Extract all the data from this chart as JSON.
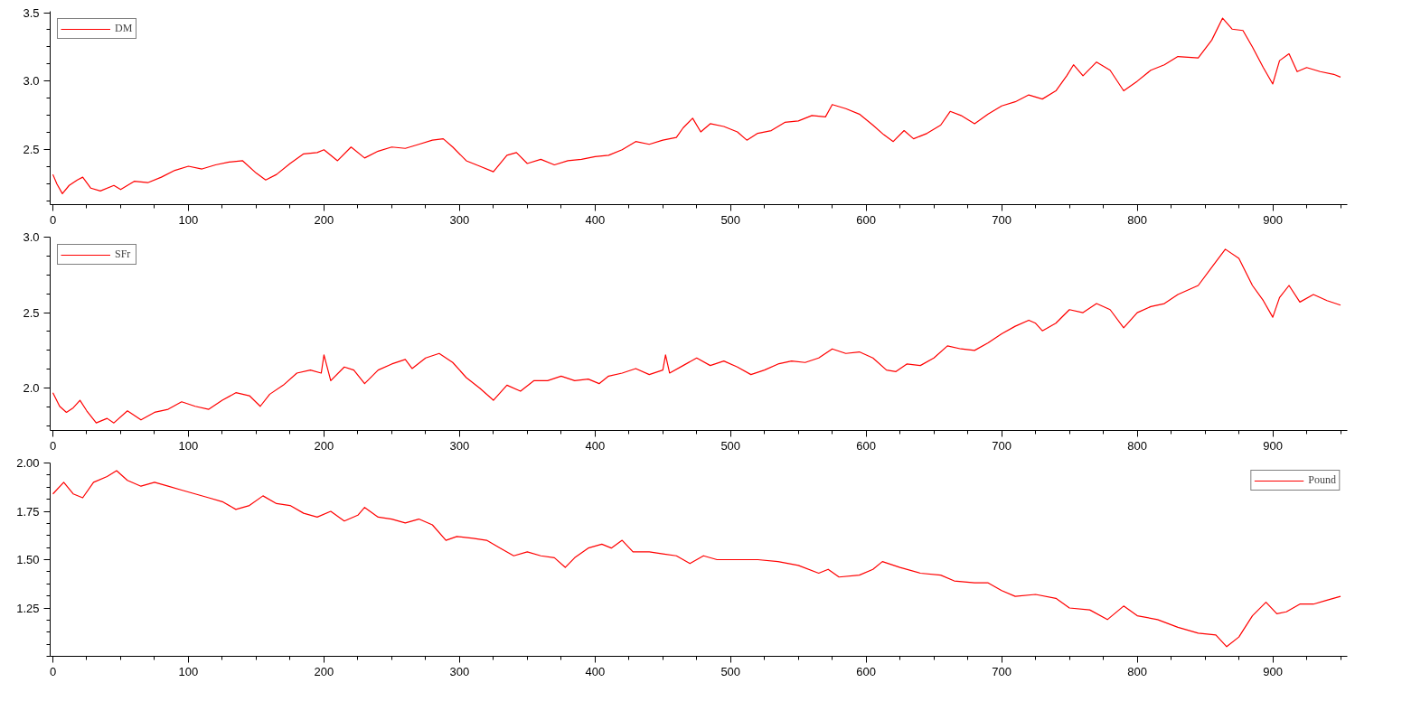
{
  "chart_data": [
    {
      "type": "line",
      "legend": "top left",
      "grid": false,
      "marker": "none",
      "line_style": "solid",
      "x": [
        0,
        3,
        7,
        12,
        18,
        22,
        28,
        35,
        45,
        50,
        60,
        70,
        80,
        90,
        100,
        110,
        120,
        130,
        140,
        150,
        157,
        165,
        175,
        185,
        195,
        200,
        210,
        220,
        230,
        240,
        250,
        260,
        270,
        280,
        288,
        295,
        305,
        315,
        325,
        335,
        342,
        350,
        360,
        370,
        380,
        390,
        400,
        410,
        420,
        430,
        440,
        450,
        460,
        465,
        472,
        478,
        485,
        495,
        505,
        512,
        520,
        530,
        540,
        550,
        560,
        570,
        575,
        585,
        595,
        605,
        613,
        620,
        628,
        635,
        645,
        655,
        662,
        670,
        680,
        690,
        700,
        710,
        720,
        730,
        740,
        748,
        753,
        760,
        770,
        780,
        790,
        800,
        810,
        820,
        830,
        845,
        855,
        863,
        870,
        878,
        885,
        893,
        900,
        905,
        912,
        918,
        925,
        935,
        945,
        950
      ],
      "series": [
        {
          "name": "DM",
          "color": "#ff0000",
          "values": [
            2.32,
            2.25,
            2.18,
            2.24,
            2.28,
            2.3,
            2.22,
            2.2,
            2.24,
            2.21,
            2.27,
            2.26,
            2.3,
            2.35,
            2.38,
            2.36,
            2.39,
            2.41,
            2.42,
            2.33,
            2.28,
            2.32,
            2.4,
            2.47,
            2.48,
            2.5,
            2.42,
            2.52,
            2.44,
            2.49,
            2.52,
            2.51,
            2.54,
            2.57,
            2.58,
            2.52,
            2.42,
            2.38,
            2.34,
            2.46,
            2.48,
            2.4,
            2.43,
            2.39,
            2.42,
            2.43,
            2.45,
            2.46,
            2.5,
            2.56,
            2.54,
            2.57,
            2.59,
            2.66,
            2.73,
            2.63,
            2.69,
            2.67,
            2.63,
            2.57,
            2.62,
            2.64,
            2.7,
            2.71,
            2.75,
            2.74,
            2.83,
            2.8,
            2.76,
            2.68,
            2.61,
            2.56,
            2.64,
            2.58,
            2.62,
            2.68,
            2.78,
            2.75,
            2.69,
            2.76,
            2.82,
            2.85,
            2.9,
            2.87,
            2.93,
            3.04,
            3.12,
            3.04,
            3.14,
            3.08,
            2.93,
            3.0,
            3.08,
            3.12,
            3.18,
            3.17,
            3.3,
            3.46,
            3.38,
            3.37,
            3.25,
            3.1,
            2.98,
            3.15,
            3.2,
            3.07,
            3.1,
            3.07,
            3.05,
            3.03
          ]
        }
      ],
      "xlim": [
        -2,
        955
      ],
      "xticks": [
        0,
        100,
        200,
        300,
        400,
        500,
        600,
        700,
        800,
        900
      ],
      "ylim": [
        2.1,
        3.51
      ],
      "yticks": [
        2.5,
        {
          "value": 3,
          "label": "3.0"
        },
        3.5
      ]
    },
    {
      "type": "line",
      "legend": "top left",
      "grid": false,
      "marker": "none",
      "line_style": "solid",
      "x": [
        0,
        5,
        10,
        15,
        20,
        25,
        32,
        40,
        45,
        55,
        65,
        75,
        85,
        95,
        105,
        115,
        125,
        135,
        145,
        153,
        160,
        170,
        180,
        190,
        198,
        200,
        205,
        215,
        222,
        230,
        240,
        250,
        260,
        265,
        275,
        285,
        295,
        305,
        315,
        325,
        335,
        345,
        355,
        365,
        375,
        385,
        395,
        403,
        410,
        420,
        430,
        440,
        450,
        452,
        455,
        465,
        475,
        485,
        495,
        505,
        515,
        525,
        535,
        545,
        555,
        565,
        575,
        585,
        595,
        605,
        615,
        622,
        630,
        640,
        650,
        660,
        670,
        680,
        690,
        700,
        710,
        720,
        725,
        730,
        740,
        750,
        760,
        770,
        780,
        790,
        800,
        810,
        820,
        830,
        845,
        855,
        865,
        875,
        885,
        893,
        900,
        905,
        912,
        920,
        930,
        940,
        950
      ],
      "series": [
        {
          "name": "SFr",
          "color": "#ff0000",
          "values": [
            1.97,
            1.88,
            1.84,
            1.87,
            1.92,
            1.85,
            1.77,
            1.8,
            1.77,
            1.85,
            1.79,
            1.84,
            1.86,
            1.91,
            1.88,
            1.86,
            1.92,
            1.97,
            1.95,
            1.88,
            1.96,
            2.02,
            2.1,
            2.12,
            2.1,
            2.22,
            2.05,
            2.14,
            2.12,
            2.03,
            2.12,
            2.16,
            2.19,
            2.13,
            2.2,
            2.23,
            2.17,
            2.07,
            2.0,
            1.92,
            2.02,
            1.98,
            2.05,
            2.05,
            2.08,
            2.05,
            2.06,
            2.03,
            2.08,
            2.1,
            2.13,
            2.09,
            2.12,
            2.22,
            2.1,
            2.15,
            2.2,
            2.15,
            2.18,
            2.14,
            2.09,
            2.12,
            2.16,
            2.18,
            2.17,
            2.2,
            2.26,
            2.23,
            2.24,
            2.2,
            2.12,
            2.11,
            2.16,
            2.15,
            2.2,
            2.28,
            2.26,
            2.25,
            2.3,
            2.36,
            2.41,
            2.45,
            2.43,
            2.38,
            2.43,
            2.52,
            2.5,
            2.56,
            2.52,
            2.4,
            2.5,
            2.54,
            2.56,
            2.62,
            2.68,
            2.8,
            2.92,
            2.86,
            2.68,
            2.58,
            2.47,
            2.6,
            2.68,
            2.57,
            2.62,
            2.58,
            2.55
          ]
        }
      ],
      "xlim": [
        -2,
        955
      ],
      "xticks": [
        0,
        100,
        200,
        300,
        400,
        500,
        600,
        700,
        800,
        900
      ],
      "ylim": [
        1.72,
        3.0
      ],
      "yticks": [
        {
          "value": 2,
          "label": "2.0"
        },
        2.5,
        {
          "value": 3,
          "label": "3.0"
        }
      ]
    },
    {
      "type": "line",
      "legend": "top right",
      "grid": false,
      "marker": "none",
      "line_style": "solid",
      "x": [
        0,
        8,
        15,
        22,
        30,
        40,
        47,
        55,
        65,
        75,
        85,
        95,
        105,
        115,
        125,
        135,
        145,
        155,
        165,
        175,
        185,
        195,
        205,
        215,
        225,
        230,
        240,
        250,
        260,
        270,
        280,
        290,
        298,
        310,
        320,
        330,
        340,
        350,
        360,
        370,
        378,
        385,
        395,
        405,
        412,
        420,
        428,
        440,
        450,
        460,
        470,
        480,
        490,
        500,
        510,
        520,
        535,
        550,
        565,
        572,
        580,
        595,
        605,
        612,
        625,
        640,
        655,
        665,
        680,
        690,
        700,
        710,
        725,
        740,
        750,
        765,
        778,
        790,
        800,
        815,
        830,
        845,
        858,
        866,
        875,
        885,
        895,
        903,
        910,
        920,
        930,
        940,
        950
      ],
      "series": [
        {
          "name": "Pound",
          "color": "#ff0000",
          "values": [
            1.84,
            1.9,
            1.84,
            1.82,
            1.9,
            1.93,
            1.96,
            1.91,
            1.88,
            1.9,
            1.88,
            1.86,
            1.84,
            1.82,
            1.8,
            1.76,
            1.78,
            1.83,
            1.79,
            1.78,
            1.74,
            1.72,
            1.75,
            1.7,
            1.73,
            1.77,
            1.72,
            1.71,
            1.69,
            1.71,
            1.68,
            1.6,
            1.62,
            1.61,
            1.6,
            1.56,
            1.52,
            1.54,
            1.52,
            1.51,
            1.46,
            1.51,
            1.56,
            1.58,
            1.56,
            1.6,
            1.54,
            1.54,
            1.53,
            1.52,
            1.48,
            1.52,
            1.5,
            1.5,
            1.5,
            1.5,
            1.49,
            1.47,
            1.43,
            1.45,
            1.41,
            1.42,
            1.45,
            1.49,
            1.46,
            1.43,
            1.42,
            1.39,
            1.38,
            1.38,
            1.34,
            1.31,
            1.32,
            1.3,
            1.25,
            1.24,
            1.19,
            1.26,
            1.21,
            1.19,
            1.15,
            1.12,
            1.11,
            1.05,
            1.1,
            1.21,
            1.28,
            1.22,
            1.23,
            1.27,
            1.27,
            1.29,
            1.31
          ]
        }
      ],
      "xlim": [
        -2,
        955
      ],
      "xticks": [
        0,
        100,
        200,
        300,
        400,
        500,
        600,
        700,
        800,
        900
      ],
      "ylim": [
        1.0,
        2.0
      ],
      "yticks": [
        1.25,
        {
          "value": 1.5,
          "label": "1.50"
        },
        {
          "value": 1.75,
          "label": "1.75"
        },
        {
          "value": 2,
          "label": "2.00"
        }
      ]
    }
  ]
}
